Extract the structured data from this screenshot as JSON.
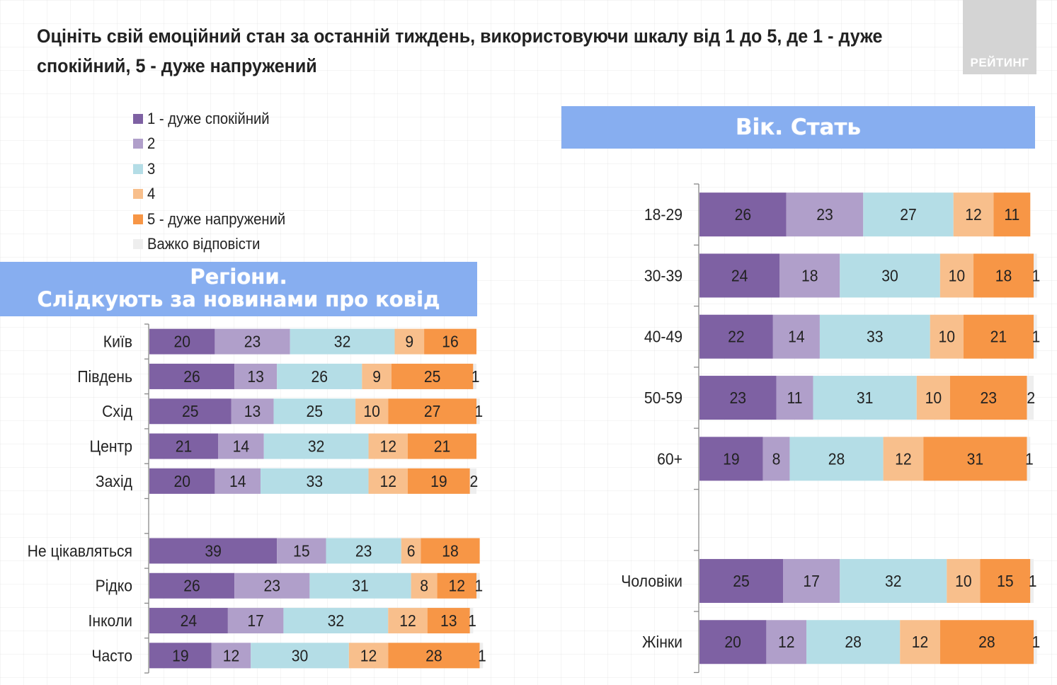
{
  "title": "Оцініть свій емоційний стан за останній тиждень, використовуючи шкалу від 1 до 5, де 1 - дуже спокійний, 5 - дуже напружений",
  "logo_text": "РЕЙТИНГ",
  "legend": [
    {
      "label": "1 - дуже спокійний",
      "color": "#7e61a3"
    },
    {
      "label": "2",
      "color": "#b09fca"
    },
    {
      "label": "3",
      "color": "#b4dde6"
    },
    {
      "label": "4",
      "color": "#f8bf8c"
    },
    {
      "label": "5 - дуже напружений",
      "color": "#f79646"
    },
    {
      "label": "Важко відповісти",
      "color": "#eeeeee"
    }
  ],
  "banners": {
    "left_line1": "Регіони.",
    "left_line2": "Слідкують за новинами про ковід",
    "right": "Вік. Стать"
  },
  "chart_data": [
    {
      "type": "bar",
      "orientation": "horizontal",
      "stacked": true,
      "title": "Регіони. Слідкують за новинами про ковід",
      "categories": [
        "Київ",
        "Південь",
        "Схід",
        "Центр",
        "Захід",
        "",
        "Не цікавляться",
        "Рідко",
        "Інколи",
        "Часто"
      ],
      "series": [
        {
          "name": "1 - дуже спокійний",
          "values": [
            20,
            26,
            25,
            21,
            20,
            null,
            39,
            26,
            24,
            19
          ]
        },
        {
          "name": "2",
          "values": [
            23,
            13,
            13,
            14,
            14,
            null,
            15,
            23,
            17,
            12
          ]
        },
        {
          "name": "3",
          "values": [
            32,
            26,
            25,
            32,
            33,
            null,
            23,
            31,
            32,
            30
          ]
        },
        {
          "name": "4",
          "values": [
            9,
            9,
            10,
            12,
            12,
            null,
            6,
            8,
            12,
            12
          ]
        },
        {
          "name": "5 - дуже напружений",
          "values": [
            16,
            25,
            27,
            21,
            19,
            null,
            18,
            12,
            13,
            28
          ]
        },
        {
          "name": "Важко відповісти",
          "values": [
            0,
            1,
            1,
            0,
            2,
            null,
            0,
            1,
            1,
            1
          ]
        }
      ],
      "xlim": [
        0,
        100
      ],
      "unit": "%"
    },
    {
      "type": "bar",
      "orientation": "horizontal",
      "stacked": true,
      "title": "Вік. Стать",
      "categories": [
        "18-29",
        "30-39",
        "40-49",
        "50-59",
        "60+",
        "",
        "Чоловіки",
        "Жінки"
      ],
      "series": [
        {
          "name": "1 - дуже спокійний",
          "values": [
            26,
            24,
            22,
            23,
            19,
            null,
            25,
            20
          ]
        },
        {
          "name": "2",
          "values": [
            23,
            18,
            14,
            11,
            8,
            null,
            17,
            12
          ]
        },
        {
          "name": "3",
          "values": [
            27,
            30,
            33,
            31,
            28,
            null,
            32,
            28
          ]
        },
        {
          "name": "4",
          "values": [
            12,
            10,
            10,
            10,
            12,
            null,
            10,
            12
          ]
        },
        {
          "name": "5 - дуже напружений",
          "values": [
            11,
            18,
            21,
            23,
            31,
            null,
            15,
            28
          ]
        },
        {
          "name": "Важко відповісти",
          "values": [
            0,
            1,
            1,
            2,
            1,
            null,
            1,
            1
          ]
        }
      ],
      "xlim": [
        0,
        100
      ],
      "unit": "%"
    }
  ]
}
